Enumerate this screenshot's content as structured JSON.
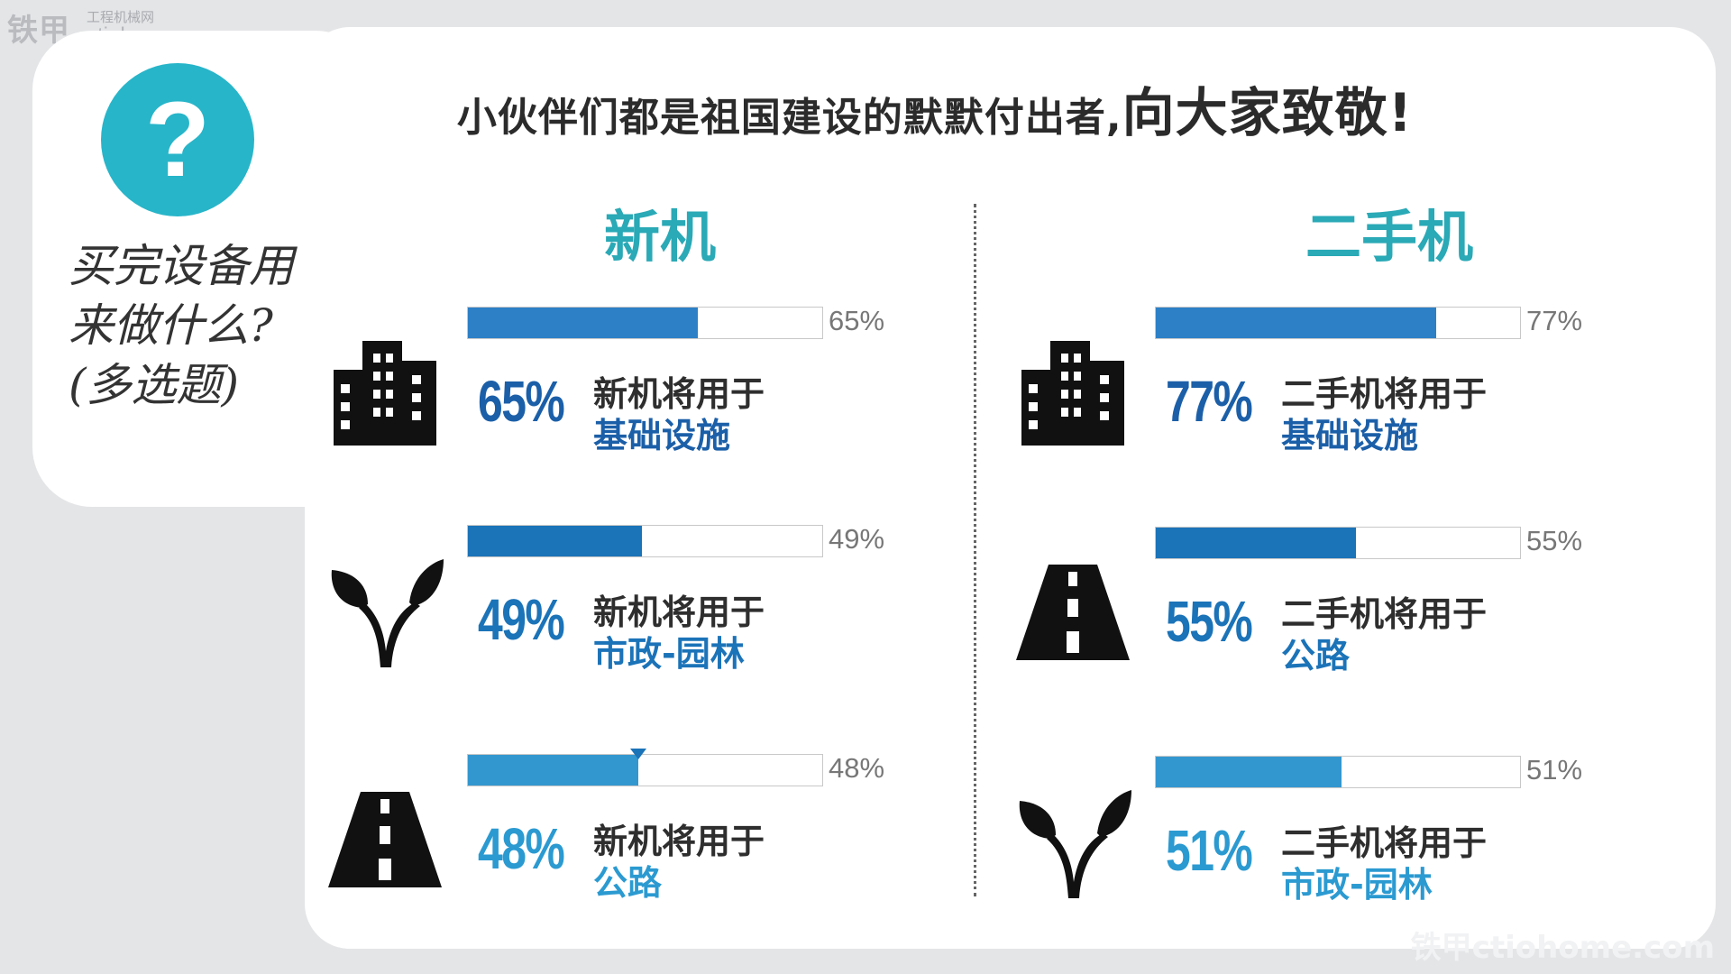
{
  "watermark": {
    "brand": "铁甲",
    "site_cn": "工程机械网",
    "site_url": "ctiohome.com",
    "bottom": "铁甲ctiohome.com"
  },
  "sidebar": {
    "icon": "question-icon",
    "question_mark": "?",
    "question": "买完设备用来做什么?",
    "note": "(多选题)"
  },
  "headline": {
    "part1": "小伙伴们都是祖国建设的默默付出者,",
    "part2": "向大家致敬!"
  },
  "colors": {
    "teal": "#2aa9b6",
    "blue_dark": "#1b73b8",
    "blue_mid": "#2d80c6",
    "blue_light": "#3397cf"
  },
  "chart_data": [
    {
      "type": "bar",
      "title": "新机",
      "categories": [
        "基础设施",
        "市政-园林",
        "公路"
      ],
      "values": [
        65,
        49,
        48
      ],
      "unit": "%",
      "ylim": [
        0,
        100
      ],
      "items": [
        {
          "icon": "buildings-icon",
          "pct": "65%",
          "line1": "新机将用于",
          "line2": "基础设施"
        },
        {
          "icon": "sprout-icon",
          "pct": "49%",
          "line1": "新机将用于",
          "line2": "市政-园林"
        },
        {
          "icon": "road-icon",
          "pct": "48%",
          "line1": "新机将用于",
          "line2": "公路"
        }
      ]
    },
    {
      "type": "bar",
      "title": "二手机",
      "categories": [
        "基础设施",
        "公路",
        "市政-园林"
      ],
      "values": [
        77,
        55,
        51
      ],
      "unit": "%",
      "ylim": [
        0,
        100
      ],
      "items": [
        {
          "icon": "buildings-icon",
          "pct": "77%",
          "line1": "二手机将用于",
          "line2": "基础设施"
        },
        {
          "icon": "road-icon",
          "pct": "55%",
          "line1": "二手机将用于",
          "line2": "公路"
        },
        {
          "icon": "sprout-icon",
          "pct": "51%",
          "line1": "二手机将用于",
          "line2": "市政-园林"
        }
      ]
    }
  ]
}
